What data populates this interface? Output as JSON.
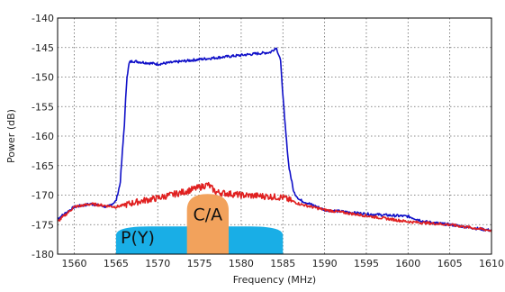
{
  "chart_data": {
    "type": "line",
    "xlabel": "Frequency (MHz)",
    "ylabel": "Power (dB)",
    "xlim": [
      1558,
      1610
    ],
    "ylim": [
      -180,
      -140
    ],
    "xticks": [
      1560,
      1565,
      1570,
      1575,
      1580,
      1585,
      1590,
      1595,
      1600,
      1605,
      1610
    ],
    "yticks": [
      -140,
      -145,
      -150,
      -155,
      -160,
      -165,
      -170,
      -175,
      -180
    ],
    "grid": true,
    "colors": {
      "blue": "#1010c8",
      "red": "#e02020",
      "p_band": "#19aee6",
      "ca_band": "#f2a25c"
    },
    "series": [
      {
        "color": "blue",
        "x": [
          1558,
          1560,
          1562,
          1564,
          1565,
          1565.5,
          1566,
          1566.3,
          1566.6,
          1567,
          1570,
          1575,
          1580,
          1583.5,
          1584.2,
          1584.7,
          1585.2,
          1585.7,
          1586.3,
          1587,
          1590,
          1595,
          1600,
          1602,
          1605,
          1610
        ],
        "y": [
          -174,
          -172,
          -171.5,
          -172,
          -171,
          -168,
          -158,
          -150,
          -147.5,
          -147.3,
          -147.8,
          -147.0,
          -146.3,
          -145.8,
          -145.0,
          -147,
          -157,
          -165,
          -169.5,
          -170.8,
          -172.5,
          -173.2,
          -173.6,
          -174.5,
          -175,
          -176
        ]
      },
      {
        "color": "red",
        "x": [
          1558,
          1560,
          1562,
          1565,
          1568,
          1570,
          1573,
          1575,
          1576,
          1577,
          1580,
          1583,
          1585,
          1587,
          1590,
          1595,
          1600,
          1603,
          1605,
          1610
        ],
        "y": [
          -174.5,
          -172,
          -171.5,
          -172,
          -171,
          -170.5,
          -169.5,
          -168.7,
          -168.2,
          -169.5,
          -170,
          -170.2,
          -170.4,
          -171.5,
          -172.5,
          -173.5,
          -174.5,
          -174.8,
          -175,
          -176
        ]
      }
    ],
    "annotations": [
      {
        "text": "P(Y)",
        "shape": "wide-band",
        "x_range": [
          1565,
          1585
        ],
        "top": -175.3,
        "color": "p_band"
      },
      {
        "text": "C/A",
        "shape": "narrow-band",
        "x_range": [
          1573.5,
          1578.5
        ],
        "top": -169.8,
        "color": "ca_band"
      }
    ]
  }
}
